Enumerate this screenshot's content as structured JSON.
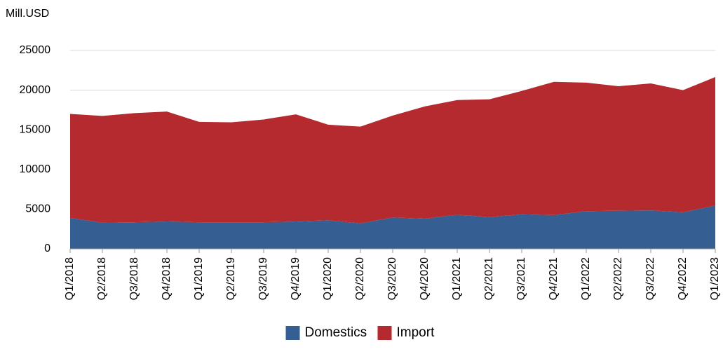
{
  "chart_data": {
    "type": "stacked_area",
    "y_axis_label": "Mill.USD",
    "categories": [
      "Q1/2018",
      "Q2/2018",
      "Q3/2018",
      "Q4/2018",
      "Q1/2019",
      "Q2/2019",
      "Q3/2019",
      "Q4/2019",
      "Q1/2020",
      "Q2/2020",
      "Q3/2020",
      "Q4/2020",
      "Q1/2021",
      "Q2/2021",
      "Q3/2021",
      "Q4/2021",
      "Q1/2022",
      "Q2/2022",
      "Q3/2022",
      "Q4/2022",
      "Q1/2023"
    ],
    "series": [
      {
        "name": "Domestics",
        "color": "#355f93",
        "values": [
          3900,
          3300,
          3350,
          3450,
          3350,
          3350,
          3350,
          3450,
          3600,
          3200,
          3950,
          3800,
          4300,
          4000,
          4350,
          4250,
          4750,
          4800,
          4850,
          4600,
          5450
        ]
      },
      {
        "name": "Import",
        "color": "#b52a2e",
        "values": [
          13100,
          13450,
          13750,
          13850,
          12650,
          12600,
          12950,
          13500,
          12050,
          12200,
          12850,
          14150,
          14450,
          14850,
          15550,
          16800,
          16200,
          15700,
          16000,
          15400,
          16200
        ]
      }
    ],
    "ylim": [
      0,
      25000
    ],
    "yticks": [
      0,
      5000,
      10000,
      15000,
      20000,
      25000
    ],
    "grid": true,
    "legend": "bottom"
  }
}
